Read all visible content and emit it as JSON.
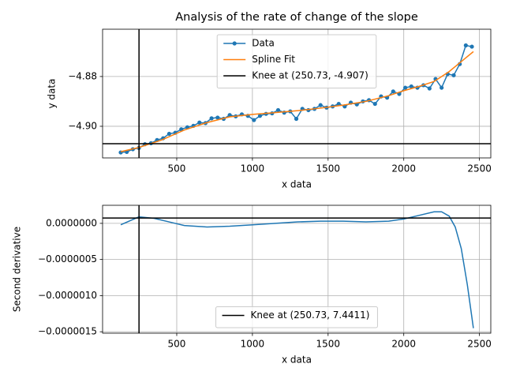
{
  "chart_data": [
    {
      "type": "line",
      "title": "Analysis of the rate of change of the slope",
      "x_label": "x data",
      "y_label": "y data",
      "xlim": [
        10,
        2575
      ],
      "ylim": [
        -4.9127,
        -4.861
      ],
      "xticks": [
        500,
        1000,
        1500,
        2000,
        2500
      ],
      "yticks": [
        {
          "value": -4.9,
          "label": "−4.90"
        },
        {
          "value": -4.88,
          "label": "−4.88"
        }
      ],
      "grid": true,
      "legend": "upper center",
      "series": [
        {
          "name": "Data",
          "color": "#1f77b4",
          "marker": true,
          "x": [
            130,
            170,
            210,
            250,
            290,
            330,
            370,
            410,
            450,
            490,
            530,
            570,
            610,
            650,
            690,
            730,
            770,
            810,
            850,
            890,
            930,
            970,
            1010,
            1050,
            1090,
            1130,
            1170,
            1210,
            1250,
            1290,
            1330,
            1370,
            1410,
            1450,
            1490,
            1530,
            1570,
            1610,
            1650,
            1690,
            1730,
            1770,
            1810,
            1850,
            1890,
            1930,
            1970,
            2010,
            2050,
            2090,
            2130,
            2170,
            2210,
            2250,
            2290,
            2330,
            2370,
            2410,
            2450
          ],
          "values": [
            -4.9105,
            -4.9103,
            -4.9092,
            -4.9087,
            -4.9072,
            -4.9068,
            -4.9055,
            -4.9048,
            -4.903,
            -4.9026,
            -4.9012,
            -4.9004,
            -4.8998,
            -4.8985,
            -4.8987,
            -4.8968,
            -4.8965,
            -4.897,
            -4.8955,
            -4.896,
            -4.8952,
            -4.8958,
            -4.8975,
            -4.8958,
            -4.895,
            -4.8948,
            -4.8935,
            -4.8945,
            -4.894,
            -4.897,
            -4.893,
            -4.8935,
            -4.893,
            -4.8915,
            -4.8925,
            -4.892,
            -4.891,
            -4.892,
            -4.8905,
            -4.8912,
            -4.89,
            -4.8895,
            -4.891,
            -4.888,
            -4.8885,
            -4.886,
            -4.887,
            -4.8845,
            -4.884,
            -4.8845,
            -4.8835,
            -4.8848,
            -4.881,
            -4.8845,
            -4.879,
            -4.8795,
            -4.875,
            -4.8675,
            -4.868
          ]
        },
        {
          "name": "Spline Fit",
          "color": "#ff7f0e",
          "x": [
            130,
            250,
            400,
            550,
            700,
            850,
            1000,
            1150,
            1300,
            1450,
            1600,
            1750,
            1900,
            2000,
            2100,
            2200,
            2300,
            2400,
            2460
          ],
          "values": [
            -4.9102,
            -4.9085,
            -4.9055,
            -4.9015,
            -4.8985,
            -4.8962,
            -4.8952,
            -4.8945,
            -4.8937,
            -4.8927,
            -4.8915,
            -4.89,
            -4.8877,
            -4.8857,
            -4.884,
            -4.882,
            -4.878,
            -4.873,
            -4.87
          ]
        }
      ],
      "knee": {
        "x": 250.73,
        "y": -4.907,
        "label": "Knee at (250.73, -4.907)",
        "color": "#000000"
      }
    },
    {
      "type": "line",
      "x_label": "x data",
      "y_label": "Second derivative",
      "xlim": [
        10,
        2575
      ],
      "ylim": [
        -1.52e-06,
        2.5e-07
      ],
      "xticks": [
        500,
        1000,
        1500,
        2000,
        2500
      ],
      "yticks": [
        {
          "value": -1.5e-06,
          "label": "−0.0000015"
        },
        {
          "value": -1e-06,
          "label": "−0.0000010"
        },
        {
          "value": -5e-07,
          "label": "−0.0000005"
        },
        {
          "value": 0,
          "label": "0.0000000"
        }
      ],
      "grid": true,
      "legend": "lower center",
      "series": [
        {
          "color": "#1f77b4",
          "x": [
            130,
            250,
            350,
            450,
            550,
            700,
            850,
            1000,
            1150,
            1300,
            1450,
            1600,
            1750,
            1900,
            2000,
            2100,
            2200,
            2250,
            2300,
            2340,
            2380,
            2420,
            2460
          ],
          "values": [
            -2e-08,
            9e-08,
            7e-08,
            2e-08,
            -3e-08,
            -5e-08,
            -4e-08,
            -2e-08,
            0,
            2e-08,
            3e-08,
            3e-08,
            2e-08,
            3e-08,
            6e-08,
            1.1e-07,
            1.6e-07,
            1.6e-07,
            1e-07,
            -5e-08,
            -3.5e-07,
            -8.5e-07,
            -1.45e-06
          ]
        }
      ],
      "knee": {
        "x": 250.73,
        "y": 7.4411e-08,
        "label": "Knee at (250.73, 7.4411)",
        "color": "#000000"
      }
    }
  ]
}
